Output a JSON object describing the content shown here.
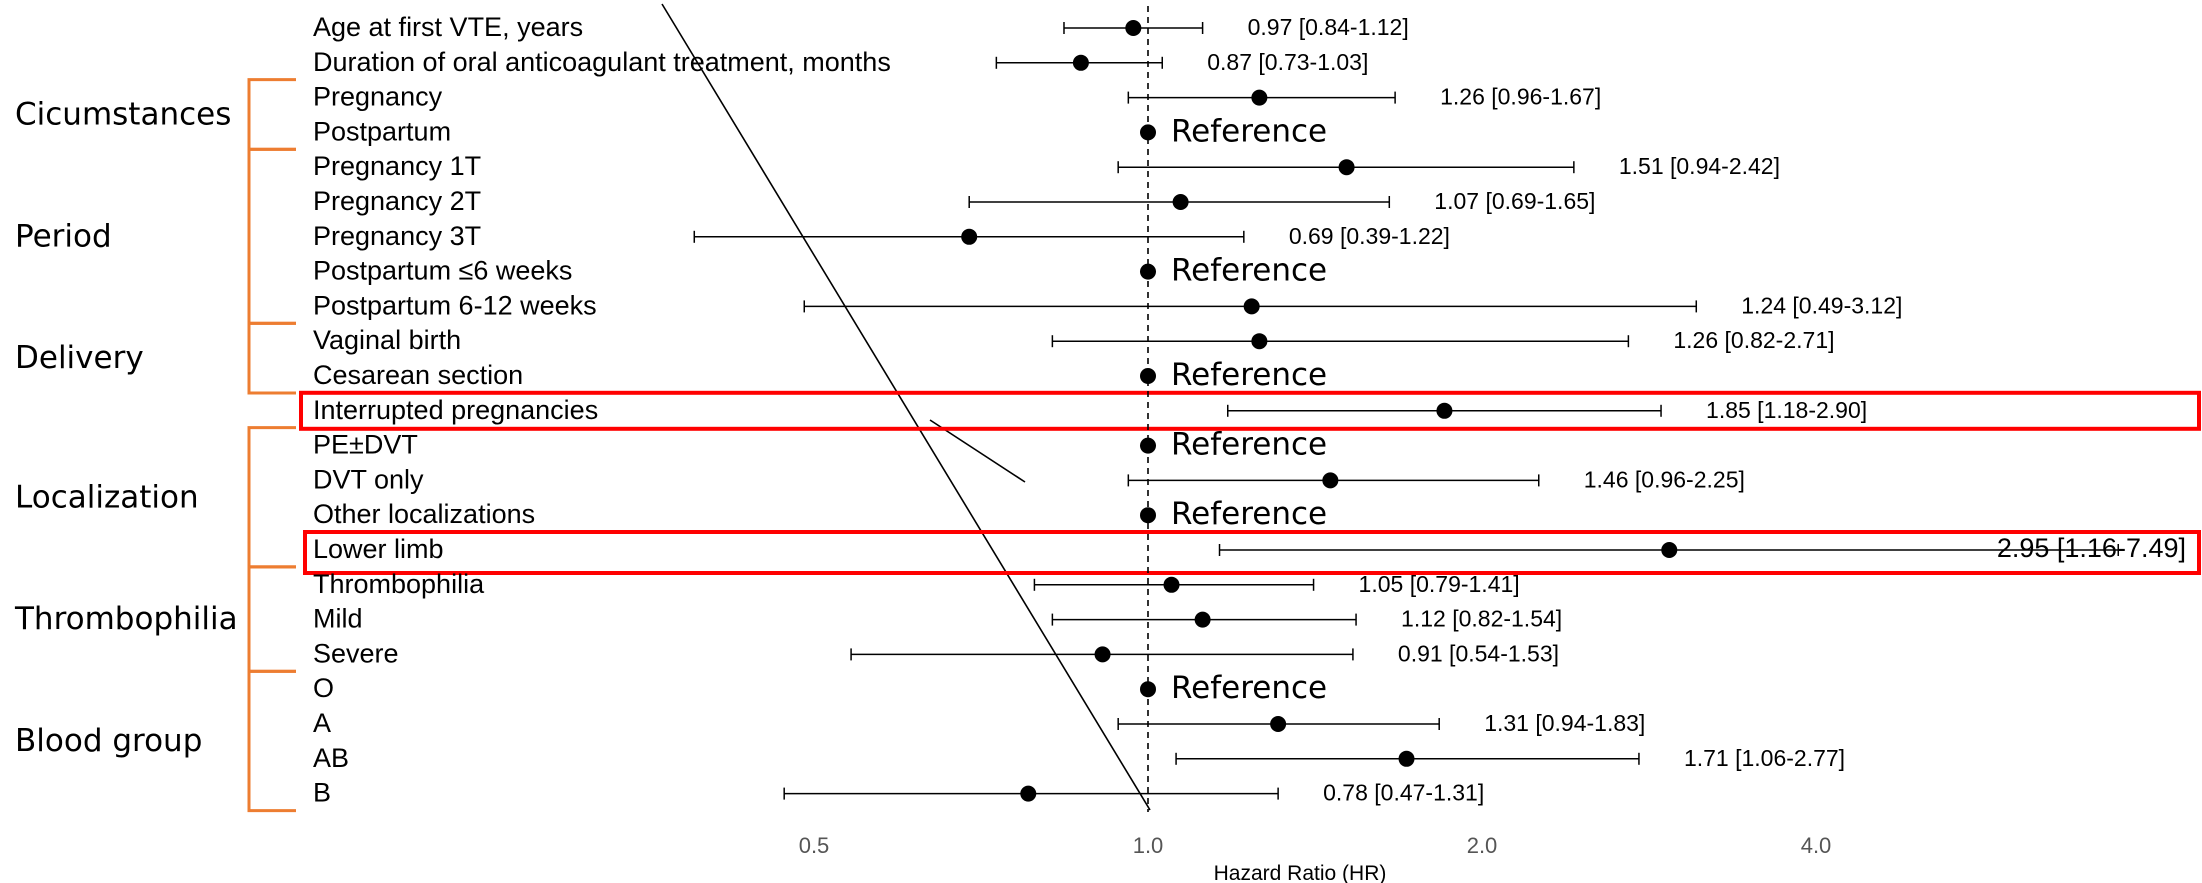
{
  "chart_data": {
    "type": "forest",
    "xlabel": "Hazard Ratio (HR)",
    "x_scale": "log2",
    "xlim": [
      0.34,
      11.0
    ],
    "x_ticks": [
      "0.5",
      "1.0",
      "2.0",
      "4.0"
    ],
    "reference_line": 1.0,
    "reference_text": "Reference",
    "rows": [
      {
        "label": "Age at first VTE, years",
        "hr": 0.97,
        "lo": 0.84,
        "hi": 1.12,
        "text": "0.97 [0.84-1.12]"
      },
      {
        "label": "Duration of oral anticoagulant treatment, months",
        "hr": 0.87,
        "lo": 0.73,
        "hi": 1.03,
        "text": "0.87 [0.73-1.03]"
      },
      {
        "label": "Pregnancy",
        "hr": 1.26,
        "lo": 0.96,
        "hi": 1.67,
        "text": "1.26 [0.96-1.67]"
      },
      {
        "label": "Postpartum",
        "hr": 1.0,
        "ref": true
      },
      {
        "label": "Pregnancy 1T",
        "hr": 1.51,
        "lo": 0.94,
        "hi": 2.42,
        "text": "1.51 [0.94-2.42]"
      },
      {
        "label": "Pregnancy 2T",
        "hr": 1.07,
        "lo": 0.69,
        "hi": 1.65,
        "text": "1.07 [0.69-1.65]"
      },
      {
        "label": "Pregnancy 3T",
        "hr": 0.69,
        "lo": 0.39,
        "hi": 1.22,
        "text": "0.69 [0.39-1.22]"
      },
      {
        "label": "Postpartum ≤6 weeks",
        "hr": 1.0,
        "ref": true
      },
      {
        "label": "Postpartum 6-12 weeks",
        "hr": 1.24,
        "lo": 0.49,
        "hi": 3.12,
        "text": "1.24 [0.49-3.12]"
      },
      {
        "label": "Vaginal birth",
        "hr": 1.26,
        "lo": 0.82,
        "hi": 2.71,
        "text": "1.26 [0.82-2.71]"
      },
      {
        "label": "Cesarean section",
        "hr": 1.0,
        "ref": true
      },
      {
        "label": "Interrupted pregnancies",
        "hr": 1.85,
        "lo": 1.18,
        "hi": 2.9,
        "text": "1.85 [1.18-2.90]",
        "highlight": true
      },
      {
        "label": "PE±DVT",
        "hr": 1.0,
        "ref": true
      },
      {
        "label": "DVT only",
        "hr": 1.46,
        "lo": 0.96,
        "hi": 2.25,
        "text": "1.46 [0.96-2.25]"
      },
      {
        "label": "Other localizations",
        "hr": 1.0,
        "ref": true
      },
      {
        "label": "Lower limb",
        "hr": 2.95,
        "lo": 1.16,
        "hi": 7.49,
        "text": "2.95 [1.16-7.49]",
        "highlight": true
      },
      {
        "label": "Thrombophilia",
        "hr": 1.05,
        "lo": 0.79,
        "hi": 1.41,
        "text": "1.05 [0.79-1.41]"
      },
      {
        "label": "Mild",
        "hr": 1.12,
        "lo": 0.82,
        "hi": 1.54,
        "text": "1.12 [0.82-1.54]"
      },
      {
        "label": "Severe",
        "hr": 0.91,
        "lo": 0.54,
        "hi": 1.53,
        "text": "0.91 [0.54-1.53]"
      },
      {
        "label": "O",
        "hr": 1.0,
        "ref": true
      },
      {
        "label": "A",
        "hr": 1.31,
        "lo": 0.94,
        "hi": 1.83,
        "text": "1.31 [0.94-1.83]"
      },
      {
        "label": "AB",
        "hr": 1.71,
        "lo": 1.06,
        "hi": 2.77,
        "text": "1.71 [1.06-2.77]"
      },
      {
        "label": "B",
        "hr": 0.78,
        "lo": 0.47,
        "hi": 1.31,
        "text": "0.78 [0.47-1.31]"
      }
    ],
    "groups": [
      {
        "name": "Cicumstances",
        "first": 2,
        "last": 3
      },
      {
        "name": "Period",
        "first": 4,
        "last": 8
      },
      {
        "name": "Delivery",
        "first": 9,
        "last": 10
      },
      {
        "name": "Localization",
        "first": 12,
        "last": 15
      },
      {
        "name": "Thrombophilia",
        "first": 16,
        "last": 18
      },
      {
        "name": "Blood group",
        "first": 19,
        "last": 22
      }
    ],
    "colors": {
      "bracket": "#ED7D31",
      "highlight": "#FF0000",
      "marks": "#000000"
    }
  }
}
